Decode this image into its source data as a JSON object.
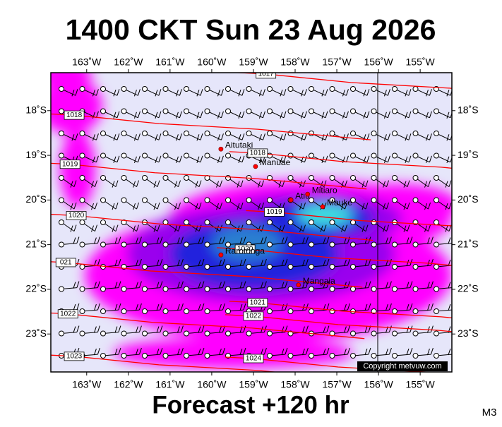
{
  "title": "1400 CKT Sun 23 Aug 2026",
  "footer": "Forecast +120 hr",
  "model": "M3",
  "copyright": "Copyright metvuw.com",
  "map": {
    "xlim": [
      -163.86,
      -154.24
    ],
    "ylim": [
      -23.85,
      -17.15
    ],
    "lon_ticks": [
      {
        "value": -163,
        "label": "163˚W"
      },
      {
        "value": -162,
        "label": "162˚W"
      },
      {
        "value": -161,
        "label": "161˚W"
      },
      {
        "value": -160,
        "label": "160˚W"
      },
      {
        "value": -159,
        "label": "159˚W"
      },
      {
        "value": -158,
        "label": "158˚W"
      },
      {
        "value": -157,
        "label": "157˚W"
      },
      {
        "value": -156,
        "label": "156˚W"
      },
      {
        "value": -155,
        "label": "155˚W"
      }
    ],
    "lat_ticks": [
      {
        "value": -18,
        "label": "18˚S"
      },
      {
        "value": -19,
        "label": "19˚S"
      },
      {
        "value": -20,
        "label": "20˚S"
      },
      {
        "value": -21,
        "label": "21˚S"
      },
      {
        "value": -22,
        "label": "22˚S"
      },
      {
        "value": -23,
        "label": "23˚S"
      }
    ],
    "places": [
      {
        "name": "Aitutaki",
        "lon": -159.78,
        "lat": -18.86
      },
      {
        "name": "Manuae",
        "lon": -158.95,
        "lat": -19.25
      },
      {
        "name": "Atiu",
        "lon": -158.1,
        "lat": -20.0
      },
      {
        "name": "Mitiaro",
        "lon": -157.7,
        "lat": -19.87
      },
      {
        "name": "Mauke",
        "lon": -157.34,
        "lat": -20.15
      },
      {
        "name": "Rarotonga",
        "lon": -159.78,
        "lat": -21.23
      },
      {
        "name": "Mangaia",
        "lon": -157.92,
        "lat": -21.9
      }
    ],
    "isobars": [
      {
        "label": "1017",
        "lon": -158.7,
        "lat": -17.18
      },
      {
        "label": "1018",
        "lon": -163.3,
        "lat": -18.1
      },
      {
        "label": "1018",
        "lon": -158.9,
        "lat": -18.95
      },
      {
        "label": "1019",
        "lon": -163.4,
        "lat": -19.2
      },
      {
        "label": "1019",
        "lon": -158.5,
        "lat": -20.27
      },
      {
        "label": "1020",
        "lon": -163.25,
        "lat": -20.35
      },
      {
        "label": "1020",
        "lon": -159.2,
        "lat": -21.1
      },
      {
        "label": "021",
        "lon": -163.5,
        "lat": -21.4
      },
      {
        "label": "1021",
        "lon": -158.9,
        "lat": -22.3
      },
      {
        "label": "1022",
        "lon": -163.45,
        "lat": -22.55
      },
      {
        "label": "1022",
        "lon": -159.0,
        "lat": -22.6
      },
      {
        "label": "1023",
        "lon": -163.3,
        "lat": -23.5
      },
      {
        "label": "1024",
        "lon": -159.0,
        "lat": -23.55
      }
    ]
  }
}
